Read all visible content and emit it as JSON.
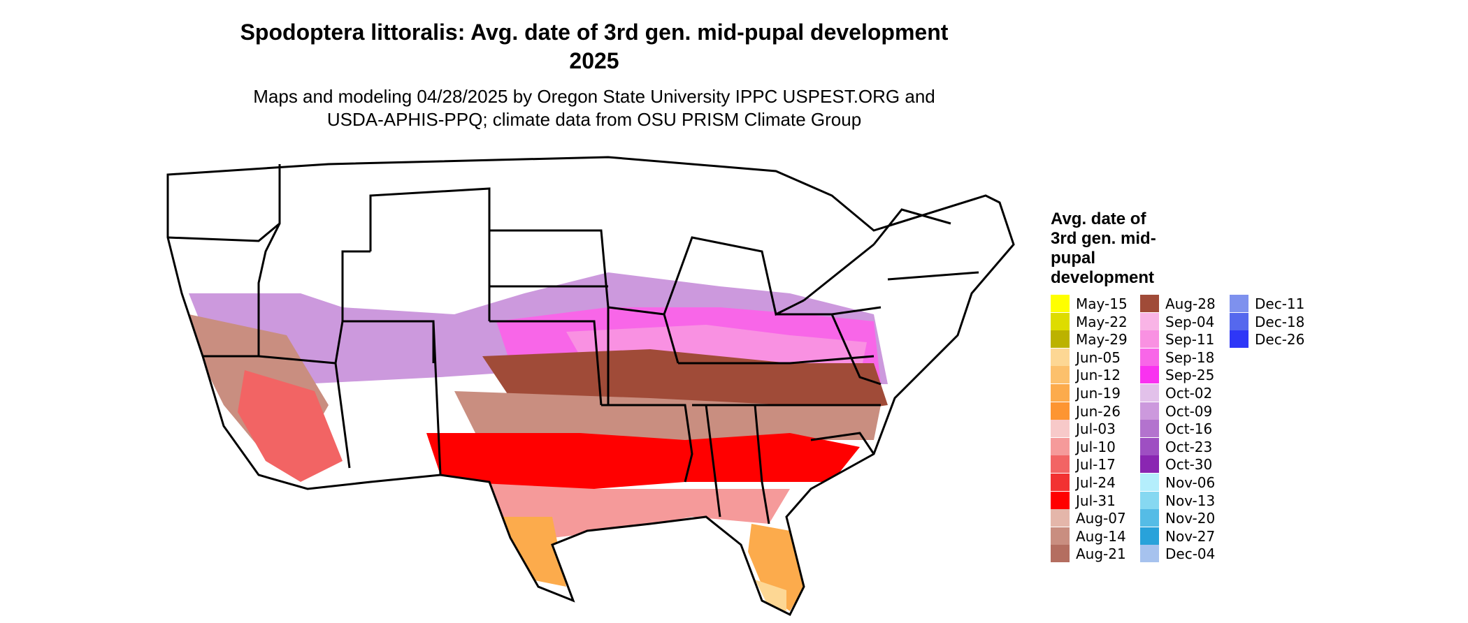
{
  "title": "Spodoptera littoralis: Avg. date of 3rd gen. mid-pupal development 2025",
  "subtitle": "Maps and modeling 04/28/2025 by Oregon State University IPPC USPEST.ORG and USDA-APHIS-PPQ; climate data from OSU PRISM Climate Group",
  "legend": {
    "title": "Avg. date of 3rd gen. mid-pupal development",
    "columns": [
      [
        {
          "label": "May-15",
          "color": "#FFFF00"
        },
        {
          "label": "May-22",
          "color": "#DEDC00"
        },
        {
          "label": "May-29",
          "color": "#BCB200"
        },
        {
          "label": "Jun-05",
          "color": "#FDD794"
        },
        {
          "label": "Jun-12",
          "color": "#FCC06C"
        },
        {
          "label": "Jun-19",
          "color": "#FCAB4C"
        },
        {
          "label": "Jun-26",
          "color": "#FD9532"
        },
        {
          "label": "Jul-03",
          "color": "#F7C9C9"
        },
        {
          "label": "Jul-10",
          "color": "#F59A9A"
        },
        {
          "label": "Jul-17",
          "color": "#F26464"
        },
        {
          "label": "Jul-24",
          "color": "#F23232"
        },
        {
          "label": "Jul-31",
          "color": "#FF0000"
        },
        {
          "label": "Aug-07",
          "color": "#E4B6AA"
        },
        {
          "label": "Aug-14",
          "color": "#C98E80"
        },
        {
          "label": "Aug-21",
          "color": "#B46E60"
        }
      ],
      [
        {
          "label": "Aug-28",
          "color": "#A04B38"
        },
        {
          "label": "Sep-04",
          "color": "#F9B4E6"
        },
        {
          "label": "Sep-11",
          "color": "#F991E2"
        },
        {
          "label": "Sep-18",
          "color": "#F866E8"
        },
        {
          "label": "Sep-25",
          "color": "#F932F0"
        },
        {
          "label": "Oct-02",
          "color": "#E2C1EA"
        },
        {
          "label": "Oct-09",
          "color": "#CC99DD"
        },
        {
          "label": "Oct-16",
          "color": "#B373CE"
        },
        {
          "label": "Oct-23",
          "color": "#9E4FC2"
        },
        {
          "label": "Oct-30",
          "color": "#8A26B2"
        },
        {
          "label": "Nov-06",
          "color": "#B4EEFC"
        },
        {
          "label": "Nov-13",
          "color": "#86D8F1"
        },
        {
          "label": "Nov-20",
          "color": "#55BCE6"
        },
        {
          "label": "Nov-27",
          "color": "#29A2DA"
        },
        {
          "label": "Dec-04",
          "color": "#A6C2EE"
        }
      ],
      [
        {
          "label": "Dec-11",
          "color": "#7E91EE"
        },
        {
          "label": "Dec-18",
          "color": "#5568EE"
        },
        {
          "label": "Dec-26",
          "color": "#2E37F7"
        }
      ]
    ]
  }
}
